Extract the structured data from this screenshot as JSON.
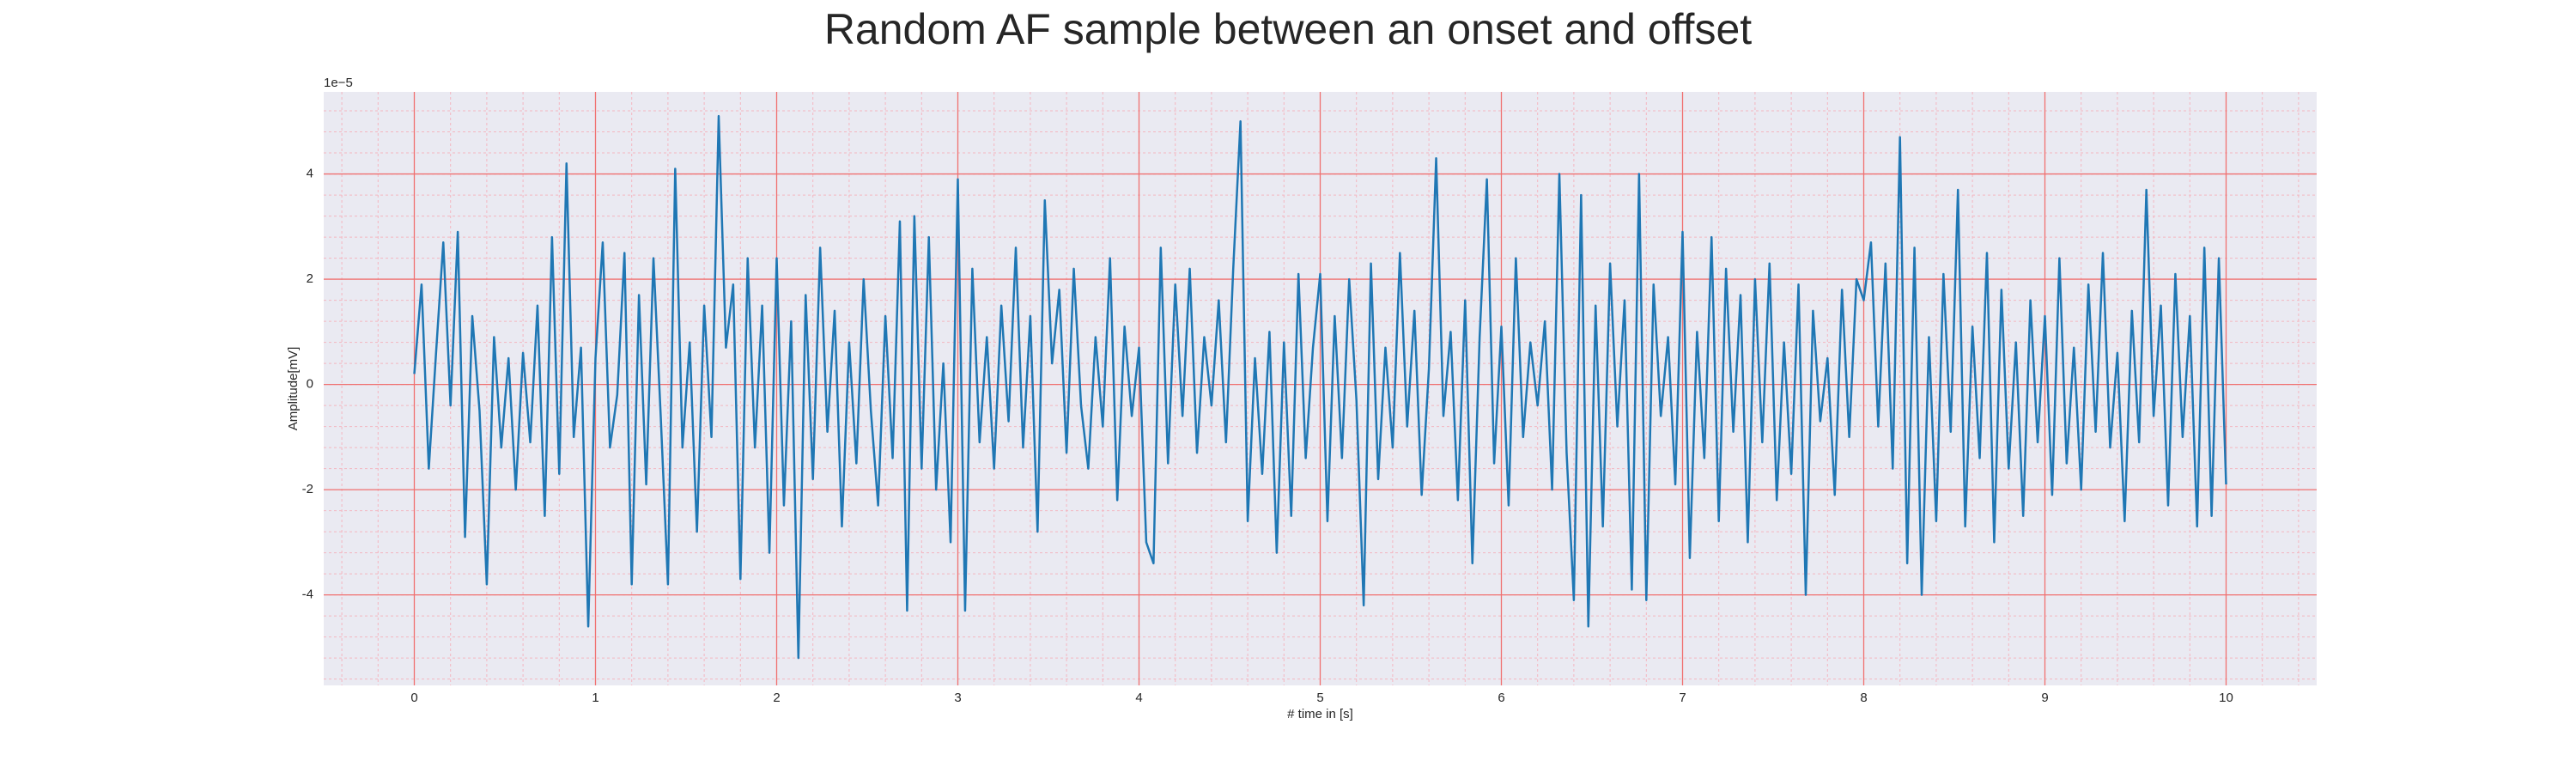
{
  "chart_data": {
    "type": "line",
    "title": "Random AF sample between an onset and offset",
    "xlabel": "# time in [s]",
    "ylabel": "Amplitude[mV]",
    "y_offset_label": "1e−5",
    "color": "#1f77b4",
    "grid": true,
    "minor_grid": true,
    "xlim": [
      -0.5,
      10.5
    ],
    "ylim": [
      -5.72,
      5.56
    ],
    "xticks": [
      0,
      1,
      2,
      3,
      4,
      5,
      6,
      7,
      8,
      9,
      10
    ],
    "yticks": [
      -4,
      -2,
      0,
      2,
      4
    ],
    "x": [
      0,
      0.04,
      0.08,
      0.12,
      0.16,
      0.2,
      0.24,
      0.28,
      0.32,
      0.36,
      0.4,
      0.44,
      0.48,
      0.52,
      0.56,
      0.6,
      0.64,
      0.68,
      0.72,
      0.76,
      0.8,
      0.84,
      0.88,
      0.92,
      0.96,
      1,
      1.04,
      1.08,
      1.12,
      1.16,
      1.2,
      1.24,
      1.28,
      1.32,
      1.36,
      1.4,
      1.44,
      1.48,
      1.52,
      1.56,
      1.6,
      1.64,
      1.68,
      1.72,
      1.76,
      1.8,
      1.84,
      1.88,
      1.92,
      1.96,
      2,
      2.04,
      2.08,
      2.12,
      2.16,
      2.2,
      2.24,
      2.28,
      2.32,
      2.36,
      2.4,
      2.44,
      2.48,
      2.52,
      2.56,
      2.6,
      2.64,
      2.68,
      2.72,
      2.76,
      2.8,
      2.84,
      2.88,
      2.92,
      2.96,
      3,
      3.04,
      3.08,
      3.12,
      3.16,
      3.2,
      3.24,
      3.28,
      3.32,
      3.36,
      3.4,
      3.44,
      3.48,
      3.52,
      3.56,
      3.6,
      3.64,
      3.68,
      3.72,
      3.76,
      3.8,
      3.84,
      3.88,
      3.92,
      3.96,
      4,
      4.04,
      4.08,
      4.12,
      4.16,
      4.2,
      4.24,
      4.28,
      4.32,
      4.36,
      4.4,
      4.44,
      4.48,
      4.52,
      4.56,
      4.6,
      4.64,
      4.68,
      4.72,
      4.76,
      4.8,
      4.84,
      4.88,
      4.92,
      4.96,
      5,
      5.04,
      5.08,
      5.12,
      5.16,
      5.2,
      5.24,
      5.28,
      5.32,
      5.36,
      5.4,
      5.44,
      5.48,
      5.52,
      5.56,
      5.6,
      5.64,
      5.68,
      5.72,
      5.76,
      5.8,
      5.84,
      5.88,
      5.92,
      5.96,
      6,
      6.04,
      6.08,
      6.12,
      6.16,
      6.2,
      6.24,
      6.28,
      6.32,
      6.36,
      6.4,
      6.44,
      6.48,
      6.52,
      6.56,
      6.6,
      6.64,
      6.68,
      6.72,
      6.76,
      6.8,
      6.84,
      6.88,
      6.92,
      6.96,
      7,
      7.04,
      7.08,
      7.12,
      7.16,
      7.2,
      7.24,
      7.28,
      7.32,
      7.36,
      7.4,
      7.44,
      7.48,
      7.52,
      7.56,
      7.6,
      7.64,
      7.68,
      7.72,
      7.76,
      7.8,
      7.84,
      7.88,
      7.92,
      7.96,
      8,
      8.04,
      8.08,
      8.12,
      8.16,
      8.2,
      8.24,
      8.28,
      8.32,
      8.36,
      8.4,
      8.44,
      8.48,
      8.52,
      8.56,
      8.6,
      8.64,
      8.68,
      8.72,
      8.76,
      8.8,
      8.84,
      8.88,
      8.92,
      8.96,
      9,
      9.04,
      9.08,
      9.12,
      9.16,
      9.2,
      9.24,
      9.28,
      9.32,
      9.36,
      9.4,
      9.44,
      9.48,
      9.52,
      9.56,
      9.6,
      9.64,
      9.68,
      9.72,
      9.76,
      9.8,
      9.84,
      9.88,
      9.92,
      9.96,
      10
    ],
    "values": [
      0.2,
      1.9,
      -1.6,
      0.6,
      2.7,
      -0.4,
      2.9,
      -2.9,
      1.3,
      -0.5,
      -3.8,
      0.9,
      -1.2,
      0.5,
      -2.0,
      0.6,
      -1.1,
      1.5,
      -2.5,
      2.8,
      -1.7,
      4.2,
      -1.0,
      0.7,
      -4.6,
      0.5,
      2.7,
      -1.2,
      -0.2,
      2.5,
      -3.8,
      1.7,
      -1.9,
      2.4,
      -0.6,
      -3.8,
      4.1,
      -1.2,
      0.8,
      -2.8,
      1.5,
      -1.0,
      5.1,
      0.7,
      1.9,
      -3.7,
      2.4,
      -1.2,
      1.5,
      -3.2,
      2.4,
      -2.3,
      1.2,
      -5.2,
      1.7,
      -1.8,
      2.6,
      -0.9,
      1.4,
      -2.7,
      0.8,
      -1.5,
      2.0,
      -0.5,
      -2.3,
      1.3,
      -1.4,
      3.1,
      -4.3,
      3.2,
      -1.6,
      2.8,
      -2.0,
      0.4,
      -3.0,
      3.9,
      -4.3,
      2.2,
      -1.1,
      0.9,
      -1.6,
      1.5,
      -0.7,
      2.6,
      -1.2,
      1.3,
      -2.8,
      3.5,
      0.4,
      1.8,
      -1.3,
      2.2,
      -0.4,
      -1.6,
      0.9,
      -0.8,
      2.4,
      -2.2,
      1.1,
      -0.6,
      0.7,
      -3.0,
      -3.4,
      2.6,
      -1.5,
      1.9,
      -0.6,
      2.2,
      -1.3,
      0.9,
      -0.4,
      1.6,
      -1.1,
      2.2,
      5.0,
      -2.6,
      0.5,
      -1.7,
      1.0,
      -3.2,
      0.8,
      -2.5,
      2.1,
      -1.4,
      0.7,
      2.1,
      -2.6,
      1.3,
      -1.4,
      2.0,
      -0.3,
      -4.2,
      2.3,
      -1.8,
      0.7,
      -1.2,
      2.5,
      -0.8,
      1.4,
      -2.1,
      0.3,
      4.3,
      -0.6,
      1.0,
      -2.2,
      1.6,
      -3.4,
      0.9,
      3.9,
      -1.5,
      1.1,
      -2.3,
      2.4,
      -1.0,
      0.8,
      -0.4,
      1.2,
      -2.0,
      4.0,
      -1.3,
      -4.1,
      3.6,
      -4.6,
      1.5,
      -2.7,
      2.3,
      -0.8,
      1.6,
      -3.9,
      4.0,
      -4.1,
      1.9,
      -0.6,
      0.9,
      -1.9,
      2.9,
      -3.3,
      1.0,
      -1.4,
      2.8,
      -2.6,
      2.2,
      -0.9,
      1.7,
      -3.0,
      2.0,
      -1.1,
      2.3,
      -2.2,
      0.8,
      -1.7,
      1.9,
      -4.0,
      1.4,
      -0.7,
      0.5,
      -2.1,
      1.8,
      -1.0,
      2.0,
      1.6,
      2.7,
      -0.8,
      2.3,
      -1.6,
      4.7,
      -3.4,
      2.6,
      -4.0,
      0.9,
      -2.6,
      2.1,
      -0.9,
      3.7,
      -2.7,
      1.1,
      -1.4,
      2.5,
      -3.0,
      1.8,
      -1.6,
      0.8,
      -2.5,
      1.6,
      -1.1,
      1.3,
      -2.1,
      2.4,
      -1.5,
      0.7,
      -2.0,
      1.9,
      -0.9,
      2.5,
      -1.2,
      0.6,
      -2.6,
      1.4,
      -1.1,
      3.7,
      -0.6,
      1.5,
      -2.3,
      2.1,
      -1.0,
      1.3,
      -2.7,
      2.6,
      -2.5,
      2.4,
      -1.9
    ]
  }
}
